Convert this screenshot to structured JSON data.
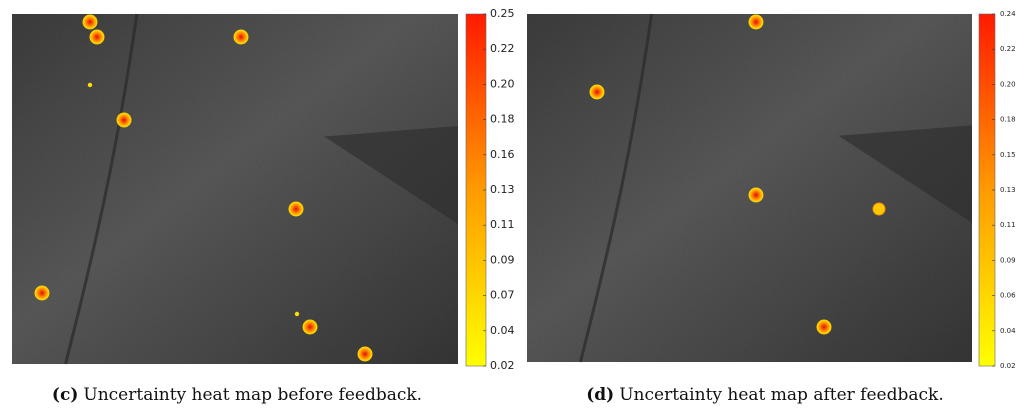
{
  "figures": [
    {
      "label": "(c)",
      "caption": "Uncertainty heat map before feedback.",
      "colorbar_ticks": [
        "0.25",
        "0.22",
        "0.20",
        "0.18",
        "0.16",
        "0.13",
        "0.11",
        "0.09",
        "0.07",
        "0.04",
        "0.02"
      ]
    },
    {
      "label": "(d)",
      "caption": "Uncertainty heat map after feedback.",
      "colorbar_ticks": [
        "0.24",
        "0.22",
        "0.20",
        "0.18",
        "0.15",
        "0.13",
        "0.11",
        "0.09",
        "0.06",
        "0.04",
        "0.02"
      ]
    }
  ]
}
